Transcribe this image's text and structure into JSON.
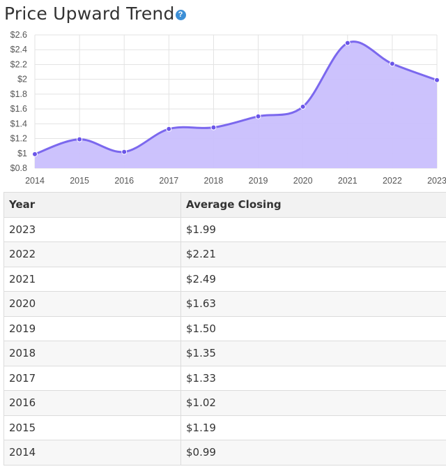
{
  "title": "Price Upward Trend",
  "help_icon_label": "?",
  "chart_data": {
    "type": "area",
    "x": [
      "2014",
      "2015",
      "2016",
      "2017",
      "2018",
      "2019",
      "2020",
      "2021",
      "2022",
      "2023"
    ],
    "y": [
      0.99,
      1.19,
      1.02,
      1.33,
      1.35,
      1.5,
      1.63,
      2.49,
      2.21,
      1.99
    ],
    "ylim": [
      0.8,
      2.6
    ],
    "yticks": [
      0.8,
      1,
      1.2,
      1.4,
      1.6,
      1.8,
      2,
      2.2,
      2.4,
      2.6
    ],
    "ytick_labels": [
      "$0.8",
      "$1",
      "$1.2",
      "$1.4",
      "$1.6",
      "$1.8",
      "$2",
      "$2.2",
      "$2.4",
      "$2.6"
    ],
    "grid": true,
    "colors": {
      "line": "#7b68ee",
      "fill": "#c9bffd",
      "point": "#6a55e8"
    }
  },
  "table": {
    "headers": [
      "Year",
      "Average Closing"
    ],
    "rows": [
      [
        "2023",
        "$1.99"
      ],
      [
        "2022",
        "$2.21"
      ],
      [
        "2021",
        "$2.49"
      ],
      [
        "2020",
        "$1.63"
      ],
      [
        "2019",
        "$1.50"
      ],
      [
        "2018",
        "$1.35"
      ],
      [
        "2017",
        "$1.33"
      ],
      [
        "2016",
        "$1.02"
      ],
      [
        "2015",
        "$1.19"
      ],
      [
        "2014",
        "$0.99"
      ]
    ]
  }
}
